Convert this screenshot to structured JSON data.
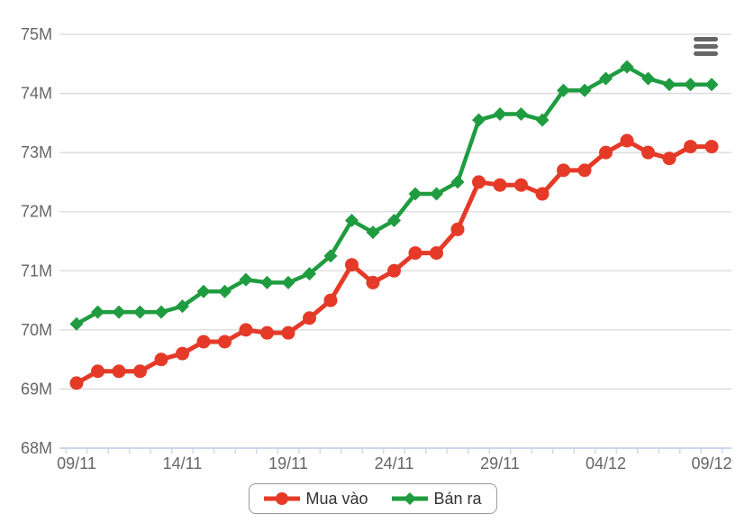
{
  "chart": {
    "background": "#ffffff",
    "colors": {
      "buy": "#e53a28",
      "sell": "#1f9c40",
      "grid": "#d9d9d9",
      "axis_line": "#ccd6eb",
      "tick": "#ccd6eb",
      "axis_label": "#666666",
      "legend_text": "#333333",
      "legend_border": "#999999",
      "menu_icon": "#666666"
    }
  },
  "chart_data": {
    "type": "line",
    "title": "",
    "xlabel": "",
    "ylabel": "",
    "ylim": [
      68,
      75
    ],
    "grid": "horizontal",
    "legend_position": "bottom",
    "y_tick_labels": [
      "68M",
      "69M",
      "70M",
      "71M",
      "72M",
      "73M",
      "74M",
      "75M"
    ],
    "y_tick_values": [
      68,
      69,
      70,
      71,
      72,
      73,
      74,
      75
    ],
    "x_tick_labels_shown": [
      "09/11",
      "14/11",
      "19/11",
      "24/11",
      "29/11",
      "04/12",
      "09/12"
    ],
    "x_label_every": 5,
    "categories": [
      "09/11",
      "10/11",
      "11/11",
      "12/11",
      "13/11",
      "14/11",
      "15/11",
      "16/11",
      "17/11",
      "18/11",
      "19/11",
      "20/11",
      "21/11",
      "22/11",
      "23/11",
      "24/11",
      "25/11",
      "26/11",
      "27/11",
      "28/11",
      "29/11",
      "30/11",
      "01/12",
      "02/12",
      "03/12",
      "04/12",
      "05/12",
      "06/12",
      "07/12",
      "08/12",
      "09/12"
    ],
    "series": [
      {
        "name": "Mua vào",
        "marker": "circle",
        "color": "#e53a28",
        "values": [
          69.1,
          69.3,
          69.3,
          69.3,
          69.5,
          69.6,
          69.8,
          69.8,
          70.0,
          69.95,
          69.95,
          70.2,
          70.5,
          71.1,
          70.8,
          71.0,
          71.3,
          71.3,
          71.7,
          72.5,
          72.45,
          72.45,
          72.3,
          72.7,
          72.7,
          73.0,
          73.2,
          73.0,
          72.9,
          73.1,
          73.1
        ]
      },
      {
        "name": "Bán ra",
        "marker": "diamond",
        "color": "#1f9c40",
        "values": [
          70.1,
          70.3,
          70.3,
          70.3,
          70.3,
          70.4,
          70.65,
          70.65,
          70.85,
          70.8,
          70.8,
          70.95,
          71.25,
          71.85,
          71.65,
          71.85,
          72.3,
          72.3,
          72.5,
          73.55,
          73.65,
          73.65,
          73.55,
          74.05,
          74.05,
          74.25,
          74.45,
          74.25,
          74.15,
          74.15,
          74.15
        ]
      }
    ]
  },
  "legend": {
    "items": [
      {
        "label": "Mua vào"
      },
      {
        "label": "Bán ra"
      }
    ]
  }
}
